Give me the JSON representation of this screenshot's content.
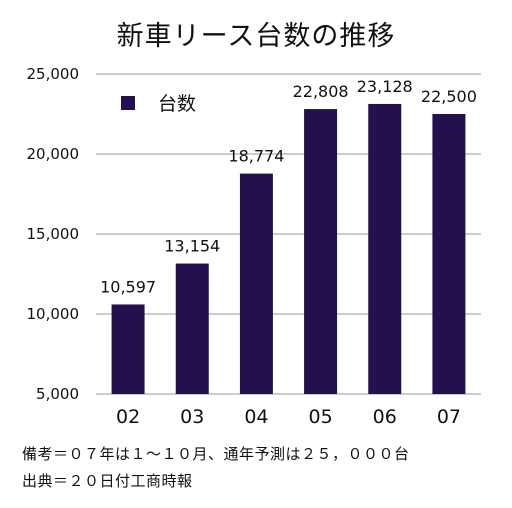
{
  "title": "新車リース台数の推移",
  "chart_data": {
    "type": "bar",
    "categories": [
      "02",
      "03",
      "04",
      "05",
      "06",
      "07"
    ],
    "series": [
      {
        "name": "台数",
        "values": [
          10597,
          13154,
          18774,
          22808,
          23128,
          22500
        ]
      }
    ],
    "data_labels": [
      "10,597",
      "13,154",
      "18,774",
      "22,808",
      "23,128",
      "22,500"
    ],
    "ylim": [
      5000,
      25000
    ],
    "yticks": [
      5000,
      10000,
      15000,
      20000,
      25000
    ],
    "ytick_labels": [
      "5,000",
      "10,000",
      "15,000",
      "20,000",
      "25,000"
    ],
    "grid": true,
    "legend_position": "top-left",
    "bar_color": "#23104e"
  },
  "notes": [
    "備考＝０７年は１～１０月、通年予測は２５，０００台",
    "出典＝２０日付工商時報"
  ]
}
